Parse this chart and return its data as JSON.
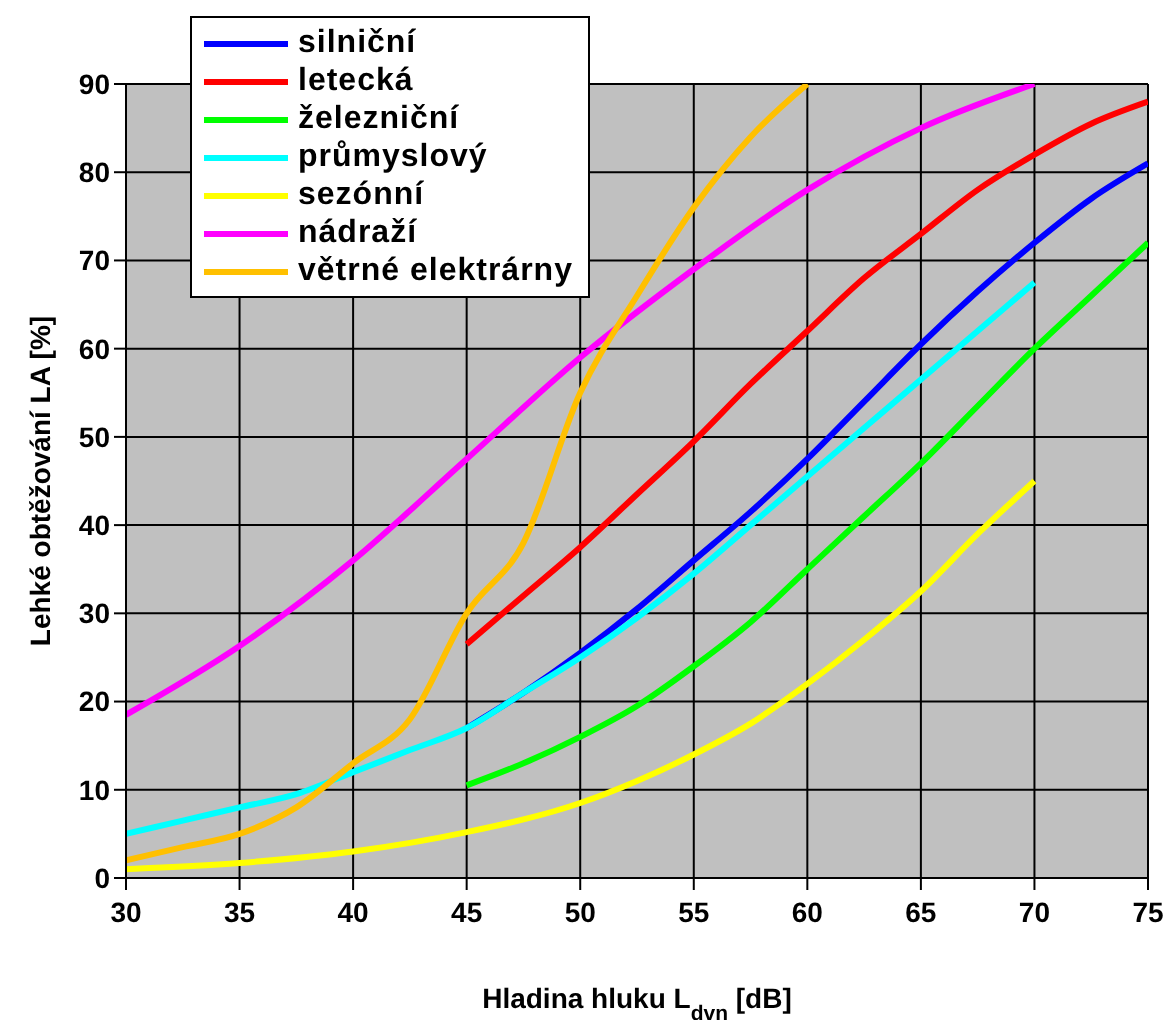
{
  "chart_data": {
    "type": "line",
    "xlabel": "Hladina hluku L$_{dvn}$ [dB]",
    "ylabel": "Lehké obtěžování LA [%]",
    "xlim": [
      30,
      75
    ],
    "xticks": [
      30,
      35,
      40,
      45,
      50,
      55,
      60,
      65,
      70,
      75
    ],
    "ylim": [
      0,
      90
    ],
    "yticks": [
      0,
      10,
      20,
      30,
      40,
      50,
      60,
      70,
      80,
      90
    ],
    "grid": true,
    "legend": "top left",
    "marker": "none",
    "line_style": "solid",
    "series": [
      {
        "name": "silniční",
        "color": "#0000ff",
        "x": [
          45,
          47.5,
          50,
          52.5,
          55,
          57.5,
          60,
          62.5,
          65,
          67.5,
          70,
          72.5,
          75
        ],
        "values": [
          17,
          21,
          25.5,
          30.5,
          36,
          41.5,
          47.5,
          54,
          60.5,
          66.5,
          72,
          77,
          81
        ]
      },
      {
        "name": "letecká",
        "color": "#ff0000",
        "x": [
          45,
          47.5,
          50,
          52.5,
          55,
          57.5,
          60,
          62.5,
          65,
          67.5,
          70,
          72.5,
          75
        ],
        "values": [
          26.5,
          32,
          37.5,
          43.5,
          49.5,
          56,
          62,
          68,
          73,
          78,
          82,
          85.5,
          88
        ]
      },
      {
        "name": "železniční",
        "color": "#00ff00",
        "x": [
          45,
          47.5,
          50,
          52.5,
          55,
          57.5,
          60,
          62.5,
          65,
          67.5,
          70,
          72.5,
          75
        ],
        "values": [
          10.5,
          13,
          16,
          19.5,
          24,
          29,
          35,
          41,
          47,
          53.5,
          60,
          66,
          72
        ]
      },
      {
        "name": "průmyslový",
        "color": "#00ffff",
        "x": [
          30,
          32.5,
          35,
          37.5,
          40,
          42.5,
          45,
          47.5,
          50,
          52.5,
          55,
          57.5,
          60,
          62.5,
          65,
          67.5,
          70
        ],
        "values": [
          5,
          6.5,
          8,
          9.5,
          12,
          14.5,
          17,
          21,
          25,
          29.5,
          34.5,
          40,
          45.5,
          51,
          56.5,
          62,
          67.5
        ]
      },
      {
        "name": "sezónní",
        "color": "#ffff00",
        "x": [
          30,
          35,
          40,
          45,
          50,
          52.5,
          55,
          57.5,
          60,
          62.5,
          65,
          67.5,
          70
        ],
        "values": [
          1,
          1.7,
          3,
          5.2,
          8.5,
          11,
          14,
          17.5,
          22,
          27,
          32.5,
          39,
          45
        ]
      },
      {
        "name": "nádraží",
        "color": "#ff00ff",
        "x": [
          30,
          35,
          40,
          45,
          50,
          55,
          60,
          65,
          70
        ],
        "values": [
          18.5,
          26.3,
          36,
          47.5,
          59,
          69,
          78,
          85,
          90
        ]
      },
      {
        "name": "větrné elektrárny",
        "color": "#ffc000",
        "x": [
          30,
          32.5,
          35,
          37.5,
          40,
          42.5,
          45,
          47.5,
          50,
          52.5,
          55,
          57.5,
          60
        ],
        "values": [
          2,
          3.5,
          5,
          8,
          13,
          18,
          30,
          38,
          55,
          66,
          76,
          84,
          90
        ]
      }
    ]
  }
}
